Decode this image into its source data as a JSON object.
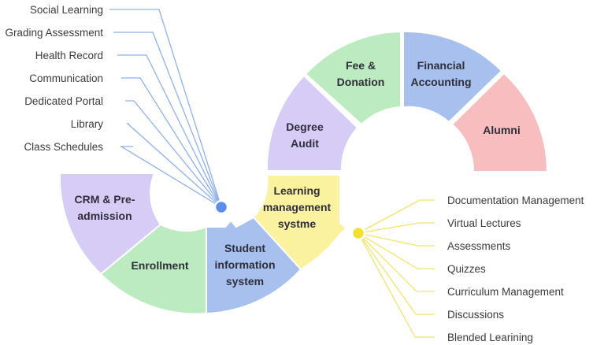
{
  "colors": {
    "purple": "#D6CCF6",
    "green": "#BDEBC0",
    "blue": "#A8C0EE",
    "yellow": "#FBF2A0",
    "pink": "#F8BDBE",
    "blue_dot": "#5A8EEA",
    "yellow_dot": "#F4E12E",
    "blue_line": "#8DB0F2",
    "yellow_line": "#F3E36A"
  },
  "segments": {
    "crm": [
      "CRM & Pre-",
      "admission"
    ],
    "enrollment": [
      "Enrollment"
    ],
    "sis": [
      "Student",
      "information",
      "system"
    ],
    "lms": [
      "Learning",
      "management",
      "systme"
    ],
    "degree": [
      "Degree",
      "Audit"
    ],
    "fee": [
      "Fee &",
      "Donation"
    ],
    "financial": [
      "Financial",
      "Accounting"
    ],
    "alumni": [
      "Alumni"
    ]
  },
  "left_features": [
    "Social Learning",
    "Grading Assessment",
    "Health Record",
    "Communication",
    "Dedicated Portal",
    "Library",
    "Class Schedules"
  ],
  "right_features": [
    "Documentation Management",
    "Virtual Lectures",
    "Assessments",
    "Quizzes",
    "Curriculum Management",
    "Discussions",
    "Blended Learining"
  ]
}
